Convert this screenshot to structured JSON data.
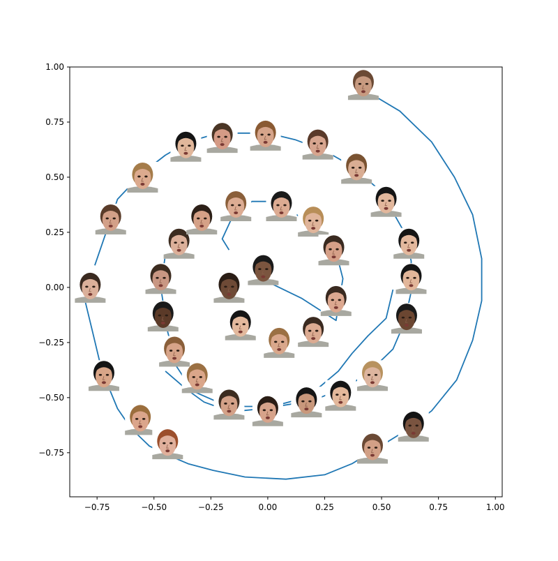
{
  "chart_data": {
    "type": "line",
    "title": "",
    "xlabel": "",
    "ylabel": "",
    "xlim": [
      -0.87,
      1.03
    ],
    "ylim": [
      -0.95,
      1.0
    ],
    "grid": false,
    "legend": "none",
    "line_color": "#1f77b4",
    "x_ticks": [
      {
        "value": -0.75,
        "label": "−0.75"
      },
      {
        "value": -0.5,
        "label": "−0.50"
      },
      {
        "value": -0.25,
        "label": "−0.25"
      },
      {
        "value": 0.0,
        "label": "0.00"
      },
      {
        "value": 0.25,
        "label": "0.25"
      },
      {
        "value": 0.5,
        "label": "0.50"
      },
      {
        "value": 0.75,
        "label": "0.75"
      },
      {
        "value": 1.0,
        "label": "1.00"
      }
    ],
    "y_ticks": [
      {
        "value": 1.0,
        "label": "1.00"
      },
      {
        "value": 0.75,
        "label": "0.75"
      },
      {
        "value": 0.5,
        "label": "0.50"
      },
      {
        "value": 0.25,
        "label": "0.25"
      },
      {
        "value": 0.0,
        "label": "0.00"
      },
      {
        "value": -0.25,
        "label": "−0.25"
      },
      {
        "value": -0.5,
        "label": "−0.50"
      },
      {
        "value": -0.75,
        "label": "−0.75"
      }
    ],
    "series": [
      {
        "x": [
          -0.01,
          0.15,
          0.3,
          0.33,
          0.31,
          0.25,
          0.17,
          0.04,
          -0.07,
          -0.16,
          -0.2,
          -0.17
        ],
        "y": [
          0.03,
          -0.05,
          -0.15,
          0.04,
          0.12,
          0.2,
          0.3,
          0.39,
          0.39,
          0.31,
          0.22,
          0.17
        ]
      },
      {
        "x": [
          -0.44,
          -0.47,
          -0.44,
          -0.4,
          -0.33,
          -0.22,
          -0.1,
          0.02,
          0.13,
          0.23,
          0.31,
          0.37,
          0.44,
          0.52,
          0.55
        ],
        "y": [
          0.22,
          0.0,
          -0.2,
          -0.36,
          -0.47,
          -0.52,
          -0.54,
          -0.54,
          -0.51,
          -0.45,
          -0.38,
          -0.3,
          -0.22,
          -0.14,
          -0.01
        ]
      },
      {
        "x": [
          -0.76,
          -0.72,
          -0.66,
          -0.55,
          -0.45,
          -0.35,
          -0.25,
          -0.13,
          0.0,
          0.12,
          0.25,
          0.37,
          0.47,
          0.54,
          0.6,
          0.63,
          0.63,
          0.6,
          0.55,
          0.45,
          0.35,
          0.23,
          0.1,
          -0.02,
          -0.12,
          -0.2,
          -0.28,
          -0.36,
          -0.45
        ],
        "y": [
          0.1,
          0.22,
          0.4,
          0.52,
          0.6,
          0.66,
          0.69,
          0.7,
          0.7,
          0.67,
          0.62,
          0.55,
          0.46,
          0.36,
          0.25,
          0.12,
          -0.02,
          -0.16,
          -0.28,
          -0.38,
          -0.45,
          -0.5,
          -0.53,
          -0.55,
          -0.56,
          -0.55,
          -0.52,
          -0.46,
          -0.38
        ]
      },
      {
        "x": [
          -0.81,
          -0.77,
          -0.74,
          -0.7,
          -0.66,
          -0.6,
          -0.52,
          -0.44,
          -0.35,
          -0.24,
          -0.1,
          0.08,
          0.25,
          0.37,
          0.48,
          0.59,
          0.72,
          0.83,
          0.9,
          0.94,
          0.94,
          0.9,
          0.82,
          0.72,
          0.58,
          0.45
        ],
        "y": [
          -0.03,
          -0.2,
          -0.33,
          -0.45,
          -0.55,
          -0.64,
          -0.72,
          -0.76,
          -0.8,
          -0.83,
          -0.86,
          -0.87,
          -0.85,
          -0.8,
          -0.73,
          -0.66,
          -0.56,
          -0.42,
          -0.24,
          -0.06,
          0.13,
          0.33,
          0.5,
          0.66,
          0.8,
          0.88
        ]
      }
    ],
    "markers": [
      {
        "x": 0.42,
        "y": 0.92,
        "tone": "#c79a80",
        "hair": "#6b4a35"
      },
      {
        "x": 0.22,
        "y": 0.65,
        "tone": "#d7a58f",
        "hair": "#5a3a2a"
      },
      {
        "x": 0.39,
        "y": 0.54,
        "tone": "#d9ad93",
        "hair": "#7a5332"
      },
      {
        "x": -0.01,
        "y": 0.69,
        "tone": "#d6a48a",
        "hair": "#8a5a33"
      },
      {
        "x": -0.2,
        "y": 0.68,
        "tone": "#d59b86",
        "hair": "#4a3525"
      },
      {
        "x": -0.36,
        "y": 0.64,
        "tone": "#e1b79b",
        "hair": "#141414"
      },
      {
        "x": -0.55,
        "y": 0.5,
        "tone": "#dcaa8e",
        "hair": "#a57c4a"
      },
      {
        "x": -0.69,
        "y": 0.31,
        "tone": "#d3a088",
        "hair": "#5a3c2a"
      },
      {
        "x": -0.78,
        "y": 0.0,
        "tone": "#dbb09a",
        "hair": "#3a2a20"
      },
      {
        "x": -0.72,
        "y": -0.4,
        "tone": "#d8a588",
        "hair": "#141414"
      },
      {
        "x": -0.56,
        "y": -0.6,
        "tone": "#dba58b",
        "hair": "#9b6e3d"
      },
      {
        "x": -0.44,
        "y": -0.71,
        "tone": "#e0b09c",
        "hair": "#9c4f2c"
      },
      {
        "x": 0.52,
        "y": 0.39,
        "tone": "#e2b79c",
        "hair": "#151515"
      },
      {
        "x": 0.62,
        "y": 0.2,
        "tone": "#e3b89d",
        "hair": "#151515"
      },
      {
        "x": 0.63,
        "y": 0.04,
        "tone": "#e2b69a",
        "hair": "#151515"
      },
      {
        "x": 0.61,
        "y": -0.14,
        "tone": "#6b4631",
        "hair": "#1a1a1a"
      },
      {
        "x": 0.46,
        "y": -0.4,
        "tone": "#ddb59f",
        "hair": "#b8925f"
      },
      {
        "x": 0.32,
        "y": -0.49,
        "tone": "#e3b89b",
        "hair": "#151515"
      },
      {
        "x": 0.17,
        "y": -0.52,
        "tone": "#c9987c",
        "hair": "#151515"
      },
      {
        "x": 0.0,
        "y": -0.56,
        "tone": "#d7a38a",
        "hair": "#2a1d15"
      },
      {
        "x": -0.17,
        "y": -0.53,
        "tone": "#d3a188",
        "hair": "#3c2c20"
      },
      {
        "x": -0.31,
        "y": -0.41,
        "tone": "#daa68a",
        "hair": "#9b7043"
      },
      {
        "x": -0.41,
        "y": -0.29,
        "tone": "#d7a489",
        "hair": "#8a5f3a"
      },
      {
        "x": -0.46,
        "y": -0.13,
        "tone": "#5b3a28",
        "hair": "#1a1a1a"
      },
      {
        "x": -0.47,
        "y": 0.04,
        "tone": "#c99783",
        "hair": "#3c2c20"
      },
      {
        "x": -0.39,
        "y": 0.2,
        "tone": "#dcb09a",
        "hair": "#3c2c20"
      },
      {
        "x": -0.29,
        "y": 0.31,
        "tone": "#d5a187",
        "hair": "#2d2018"
      },
      {
        "x": -0.14,
        "y": 0.37,
        "tone": "#dcac93",
        "hair": "#8a5f3a"
      },
      {
        "x": 0.06,
        "y": 0.37,
        "tone": "#dcab92",
        "hair": "#1a1a1a"
      },
      {
        "x": 0.2,
        "y": 0.3,
        "tone": "#e0b59b",
        "hair": "#b88e58"
      },
      {
        "x": 0.29,
        "y": 0.17,
        "tone": "#d6a088",
        "hair": "#3a2a20"
      },
      {
        "x": 0.3,
        "y": -0.06,
        "tone": "#dca890",
        "hair": "#3a2a20"
      },
      {
        "x": 0.2,
        "y": -0.2,
        "tone": "#dcab92",
        "hair": "#3a2a20"
      },
      {
        "x": 0.05,
        "y": -0.25,
        "tone": "#d9a78b",
        "hair": "#9b7043"
      },
      {
        "x": -0.12,
        "y": -0.17,
        "tone": "#e3b99d",
        "hair": "#151515"
      },
      {
        "x": -0.17,
        "y": 0.0,
        "tone": "#6e4a36",
        "hair": "#2a1d15"
      },
      {
        "x": -0.02,
        "y": 0.08,
        "tone": "#7b553f",
        "hair": "#1a1a1a"
      },
      {
        "x": 0.46,
        "y": -0.73,
        "tone": "#d2a086",
        "hair": "#6b4a35"
      },
      {
        "x": 0.64,
        "y": -0.63,
        "tone": "#7a5440",
        "hair": "#141414"
      }
    ]
  }
}
